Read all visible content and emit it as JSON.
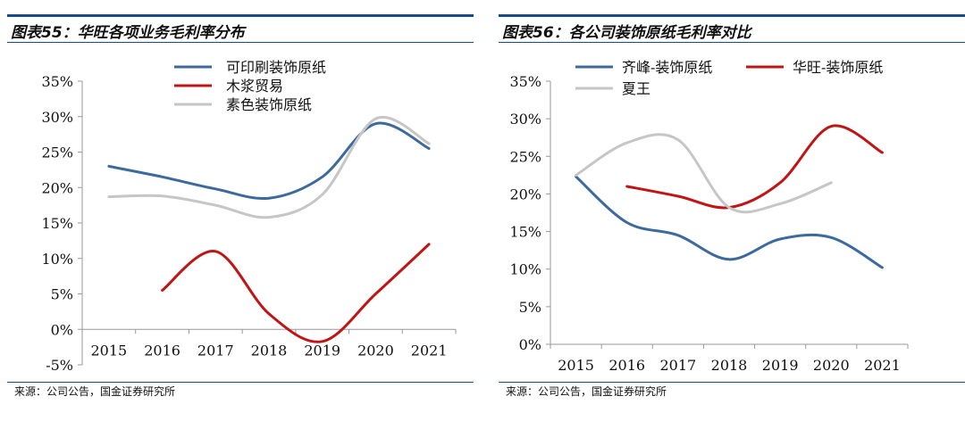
{
  "source_text": "来源：公司公告，国金证券研究所",
  "chart_data": [
    {
      "type": "line",
      "title": "图表55：华旺各项业务毛利率分布",
      "categories": [
        "2015",
        "2016",
        "2017",
        "2018",
        "2019",
        "2020",
        "2021"
      ],
      "ylim": [
        -0.05,
        0.35
      ],
      "yticks": [
        "-5%",
        "0%",
        "5%",
        "10%",
        "15%",
        "20%",
        "25%",
        "30%",
        "35%"
      ],
      "grid": false,
      "legend_position": "top",
      "series": [
        {
          "name": "可印刷装饰原纸",
          "color": "#3d6a9e",
          "values": [
            0.23,
            0.215,
            0.198,
            0.185,
            0.215,
            0.29,
            0.255
          ]
        },
        {
          "name": "木浆贸易",
          "color": "#c01515",
          "values": [
            null,
            0.055,
            0.11,
            0.022,
            -0.017,
            0.05,
            0.12
          ]
        },
        {
          "name": "素色装饰原纸",
          "color": "#c6c6c6",
          "values": [
            0.187,
            0.188,
            0.175,
            0.158,
            0.19,
            0.297,
            0.262
          ]
        }
      ]
    },
    {
      "type": "line",
      "title": "图表56：各公司装饰原纸毛利率对比",
      "categories": [
        "2015",
        "2016",
        "2017",
        "2018",
        "2019",
        "2020",
        "2021"
      ],
      "ylim": [
        0,
        0.35
      ],
      "yticks": [
        "0%",
        "5%",
        "10%",
        "15%",
        "20%",
        "25%",
        "30%",
        "35%"
      ],
      "grid": false,
      "legend_position": "top",
      "series": [
        {
          "name": "齐峰-装饰原纸",
          "color": "#3d6a9e",
          "values": [
            0.223,
            0.162,
            0.145,
            0.113,
            0.14,
            0.142,
            0.102
          ]
        },
        {
          "name": "华旺-装饰原纸",
          "color": "#c01515",
          "values": [
            null,
            0.21,
            0.197,
            0.182,
            0.215,
            0.29,
            0.255
          ]
        },
        {
          "name": "夏王",
          "color": "#c6c6c6",
          "values": [
            0.225,
            0.268,
            0.272,
            0.182,
            0.187,
            0.215,
            null
          ]
        }
      ]
    }
  ]
}
